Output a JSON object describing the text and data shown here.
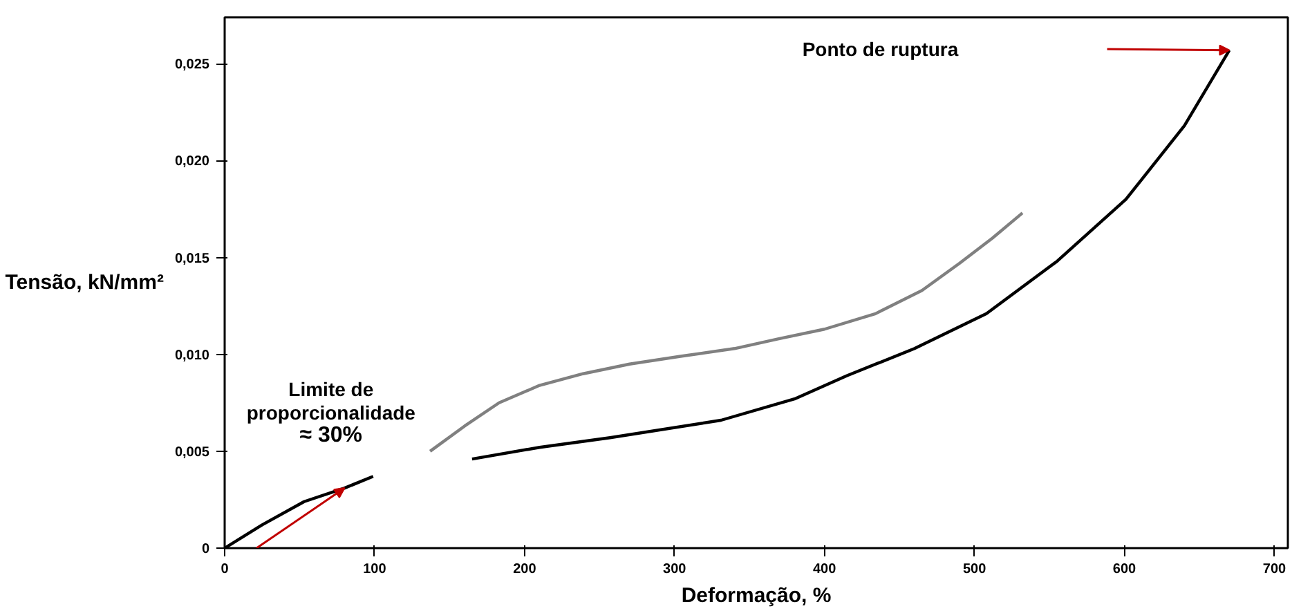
{
  "chart_data": {
    "type": "line",
    "xlabel": "Deformação, %",
    "ylabel": "Tensão, kN/mm²",
    "xlim": [
      0,
      709
    ],
    "ylim": [
      0,
      0.0274
    ],
    "xticks": [
      0,
      100,
      200,
      300,
      400,
      500,
      600,
      700
    ],
    "yticks": [
      {
        "value": 0,
        "label": "0"
      },
      {
        "value": 0.005,
        "label": "0,005"
      },
      {
        "value": 0.01,
        "label": "0,010"
      },
      {
        "value": 0.015,
        "label": "0,015"
      },
      {
        "value": 0.02,
        "label": "0,020"
      },
      {
        "value": 0.025,
        "label": "0,025"
      }
    ],
    "grid": false,
    "marker": "none",
    "line_style": "solid",
    "series": [
      {
        "color": "#000000",
        "x": [
          0,
          25,
          53,
          80,
          99,
          110,
          165,
          210,
          257,
          331,
          380,
          415,
          460,
          508,
          555,
          601,
          640,
          670
        ],
        "values": [
          0,
          0.0012,
          0.0024,
          0.0031,
          0.0037,
          null,
          0.0046,
          0.0052,
          0.0057,
          0.0066,
          0.0077,
          0.0089,
          0.0103,
          0.0121,
          0.0148,
          0.018,
          0.0218,
          0.0257
        ]
      },
      {
        "color": "#808080",
        "x": [
          137,
          160,
          183,
          210,
          239,
          270,
          304,
          340,
          369,
          400,
          434,
          465,
          490,
          512,
          532
        ],
        "values": [
          0.005,
          0.0063,
          0.0075,
          0.0084,
          0.009,
          0.0095,
          0.0099,
          0.0103,
          0.0108,
          0.0113,
          0.0121,
          0.0133,
          0.0147,
          0.016,
          0.0173
        ]
      }
    ],
    "annotations": [
      "Ponto de ruptura",
      "Limite de\nproporcionalidade\n≈ 30%"
    ]
  }
}
